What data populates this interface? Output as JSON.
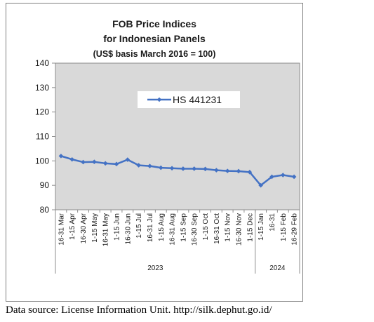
{
  "chart_data": {
    "type": "line",
    "title": "FOB Price Indices",
    "subtitle": "for Indonesian Panels",
    "subtitle2": "(US$ basis March 2016 = 100)",
    "xlabel": "",
    "ylabel": "",
    "ylim": [
      80,
      140
    ],
    "yticks": [
      "80",
      "90",
      "100",
      "110",
      "120",
      "130",
      "140"
    ],
    "grid": false,
    "legend_position": "top-center",
    "categories": [
      "16-31 Mar",
      "1-15 Apr",
      "16-30 Apr",
      "1-15 May",
      "16-31 May",
      "1-15 Jun",
      "16-30 Jun",
      "1-15 Jul",
      "16-31 Jul",
      "1-15 Aug",
      "16-31 Aug",
      "1-15 Sep",
      "16-30 Sep",
      "1-15 Oct",
      "16-31 Oct",
      "1-15 Nov",
      "16-30 Nov",
      "1-15 Dec",
      "1-15 Jan",
      "16-31",
      "1-15 Feb",
      "16-29 Feb"
    ],
    "groups": [
      {
        "label": "2023",
        "count": 18
      },
      {
        "label": "2024",
        "count": 4
      }
    ],
    "series": [
      {
        "name": "HS 441231",
        "color": "#4472c4",
        "values": [
          102.0,
          100.6,
          99.5,
          99.6,
          99.0,
          98.7,
          100.5,
          98.2,
          97.9,
          97.2,
          97.0,
          96.8,
          96.8,
          96.7,
          96.2,
          95.9,
          95.8,
          95.4,
          90.0,
          93.5,
          94.2,
          93.5
        ]
      }
    ]
  },
  "source": "Data source: License Information Unit. http://silk.dephut.go.id/"
}
